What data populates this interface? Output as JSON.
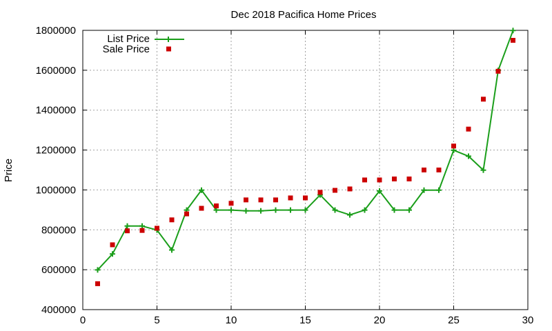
{
  "chart_data": {
    "type": "line",
    "title": "Dec 2018 Pacifica Home Prices",
    "xlabel": "",
    "ylabel": "Price",
    "xlim": [
      0,
      30
    ],
    "ylim": [
      400000,
      1800000
    ],
    "xticks": [
      0,
      5,
      10,
      15,
      20,
      25,
      30
    ],
    "yticks": [
      400000,
      600000,
      800000,
      1000000,
      1200000,
      1400000,
      1600000,
      1800000
    ],
    "grid": true,
    "legend_position": "top-left",
    "series": [
      {
        "name": "List Price",
        "style": "line-with-plus-markers",
        "color": "#1a9e1a",
        "x": [
          1,
          2,
          3,
          4,
          5,
          6,
          7,
          8,
          9,
          10,
          11,
          12,
          13,
          14,
          15,
          16,
          17,
          18,
          19,
          20,
          21,
          22,
          23,
          24,
          25,
          26,
          27,
          28,
          29
        ],
        "values": [
          599000,
          679000,
          819000,
          819000,
          799000,
          699000,
          899000,
          999000,
          899000,
          899000,
          895000,
          895000,
          899000,
          899000,
          899000,
          975000,
          899000,
          875000,
          899000,
          995000,
          899000,
          899000,
          999000,
          999000,
          1199000,
          1169000,
          1099000,
          1599000,
          1799000
        ]
      },
      {
        "name": "Sale Price",
        "style": "square-markers",
        "color": "#cc0000",
        "x": [
          1,
          2,
          3,
          4,
          5,
          6,
          7,
          8,
          9,
          10,
          11,
          12,
          13,
          14,
          15,
          16,
          17,
          18,
          19,
          20,
          21,
          22,
          23,
          24,
          25,
          26,
          27,
          28,
          29
        ],
        "values": [
          530000,
          725000,
          795000,
          797000,
          808000,
          850000,
          880000,
          908000,
          920000,
          933000,
          950000,
          950000,
          950000,
          960000,
          960000,
          988000,
          998000,
          1005000,
          1050000,
          1050000,
          1055000,
          1055000,
          1100000,
          1100000,
          1220000,
          1305000,
          1455000,
          1595000,
          1750000
        ]
      }
    ]
  }
}
